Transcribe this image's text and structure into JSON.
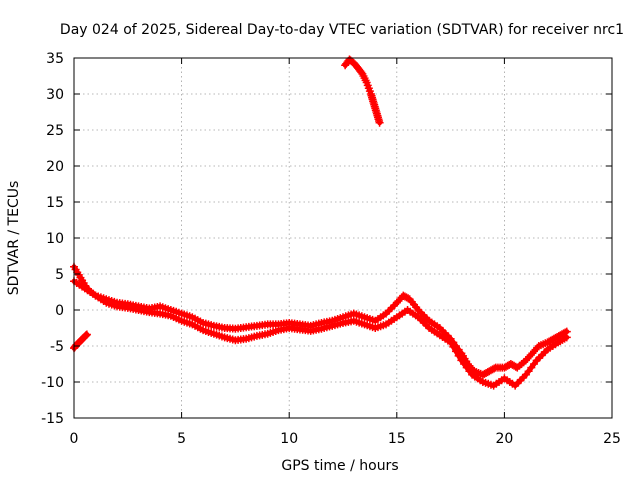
{
  "chart_data": {
    "type": "scatter",
    "title": "Day 024 of 2025, Sidereal Day-to-day VTEC variation (SDTVAR) for receiver nrc1",
    "xlabel": "GPS time / hours",
    "ylabel": "SDTVAR / TECUs",
    "xlim": [
      0,
      25
    ],
    "ylim": [
      -15,
      35
    ],
    "xticks": [
      0,
      5,
      10,
      15,
      20,
      25
    ],
    "yticks": [
      -15,
      -10,
      -5,
      0,
      5,
      10,
      15,
      20,
      25,
      30,
      35
    ],
    "grid": true,
    "marker": "+",
    "color": "#ff0000",
    "series": [
      {
        "name": "main-trace-upper",
        "x": [
          0,
          0.3,
          0.6,
          1.0,
          1.5,
          2.0,
          2.5,
          3.0,
          3.5,
          4.0,
          4.5,
          5.0,
          5.5,
          6.0,
          6.5,
          7.0,
          7.5,
          8.0,
          8.5,
          9.0,
          9.5,
          10.0,
          10.5,
          11.0,
          11.5,
          12.0,
          12.5,
          13.0,
          13.5,
          14.0,
          14.5,
          15.0,
          15.3,
          15.6,
          16.0,
          16.5,
          17.0,
          17.5,
          18.0,
          18.3,
          18.6,
          19.0,
          19.3,
          19.6,
          20.0,
          20.3,
          20.6,
          21.0,
          21.3,
          21.6,
          22.0,
          22.3,
          22.6,
          22.9
        ],
        "y": [
          6,
          4.5,
          3,
          2,
          1.5,
          1,
          0.8,
          0.5,
          0.2,
          0.5,
          0,
          -0.5,
          -1,
          -1.8,
          -2.2,
          -2.5,
          -2.6,
          -2.4,
          -2.2,
          -2,
          -2,
          -1.8,
          -2,
          -2.2,
          -1.8,
          -1.5,
          -1,
          -0.5,
          -1,
          -1.5,
          -0.5,
          1,
          2,
          1.5,
          0,
          -1.5,
          -2.5,
          -4,
          -6,
          -7.5,
          -8.5,
          -9,
          -8.5,
          -8,
          -8,
          -7.5,
          -8,
          -7,
          -6,
          -5,
          -4.5,
          -4,
          -3.5,
          -3
        ]
      },
      {
        "name": "main-trace-lower",
        "x": [
          0,
          0.5,
          1.0,
          1.5,
          2.0,
          2.5,
          3.0,
          3.5,
          4.0,
          4.5,
          5.0,
          5.5,
          6.0,
          6.5,
          7.0,
          7.5,
          8.0,
          8.5,
          9.0,
          9.5,
          10.0,
          10.5,
          11.0,
          11.5,
          12.0,
          12.5,
          13.0,
          13.5,
          14.0,
          14.5,
          15.0,
          15.5,
          16.0,
          16.5,
          17.0,
          17.5,
          18.0,
          18.5,
          19.0,
          19.5,
          20.0,
          20.5,
          21.0,
          21.5,
          22.0,
          22.5,
          22.9
        ],
        "y": [
          4,
          3,
          2,
          1,
          0.5,
          0.3,
          0,
          -0.3,
          -0.5,
          -0.8,
          -1.5,
          -2,
          -2.8,
          -3.3,
          -3.8,
          -4.2,
          -4,
          -3.6,
          -3.3,
          -2.8,
          -2.5,
          -2.7,
          -2.9,
          -2.6,
          -2.2,
          -1.8,
          -1.5,
          -2,
          -2.5,
          -2,
          -1,
          0,
          -1,
          -2.5,
          -3.5,
          -4.5,
          -7,
          -9,
          -10,
          -10.5,
          -9.5,
          -10.5,
          -9,
          -7,
          -5.5,
          -4.5,
          -3.8
        ]
      },
      {
        "name": "early-segment",
        "x": [
          0,
          0.1,
          0.2,
          0.3,
          0.4,
          0.5,
          0.6
        ],
        "y": [
          -5.3,
          -4.9,
          -4.6,
          -4.3,
          -4.0,
          -3.7,
          -3.4
        ]
      },
      {
        "name": "high-segment",
        "x": [
          12.6,
          12.8,
          13.0,
          13.2,
          13.4,
          13.6,
          13.8,
          13.9,
          14.0,
          14.1,
          14.2
        ],
        "y": [
          34,
          34.8,
          34.3,
          33.6,
          32.8,
          31.6,
          30,
          29,
          28,
          27,
          26
        ]
      }
    ]
  }
}
